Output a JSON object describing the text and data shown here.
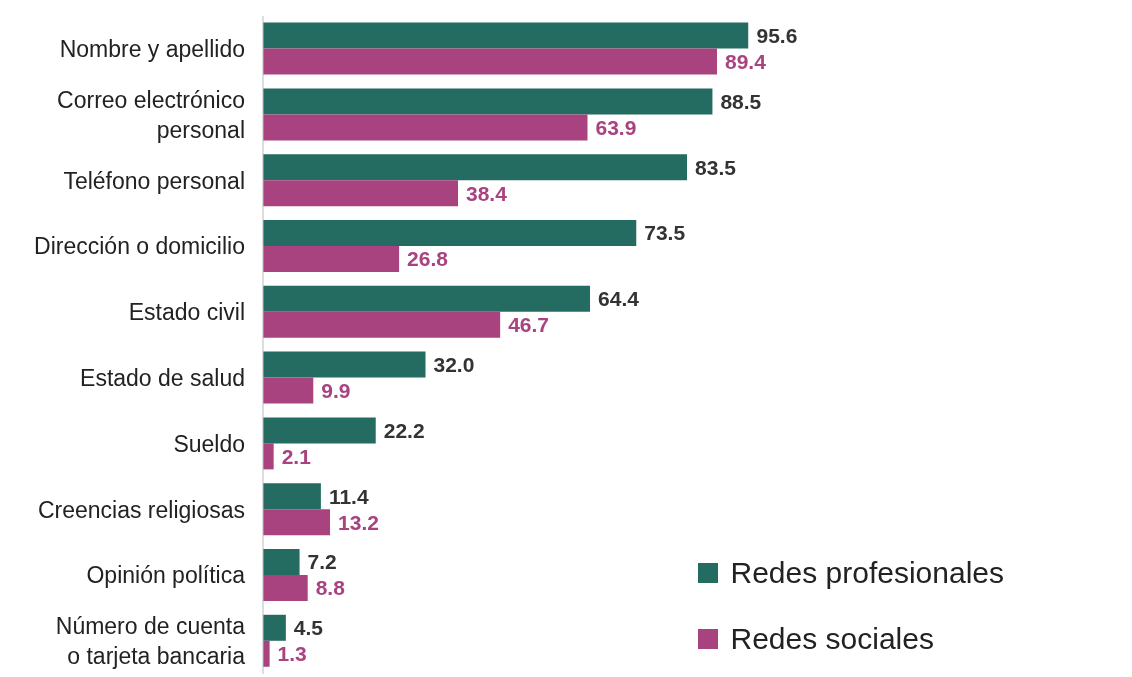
{
  "chart_data": {
    "type": "bar",
    "orientation": "horizontal",
    "categories": [
      "Nombre y apellido",
      "Correo electrónico personal",
      "Teléfono personal",
      "Dirección o domicilio",
      "Estado civil",
      "Estado de salud",
      "Sueldo",
      "Creencias religiosas",
      "Opinión política",
      "Número de cuenta o tarjeta bancaria"
    ],
    "series": [
      {
        "name": "Redes profesionales",
        "color": "#246b61",
        "values": [
          95.6,
          88.5,
          83.5,
          73.5,
          64.4,
          32.0,
          22.2,
          11.4,
          7.2,
          4.5
        ],
        "value_labels": [
          "95.6",
          "88.5",
          "83.5",
          "73.5",
          "64.4",
          "32.0",
          "22.2",
          "11.4",
          "7.2",
          "4.5"
        ]
      },
      {
        "name": "Redes sociales",
        "color": "#a8437f",
        "values": [
          89.4,
          63.9,
          38.4,
          26.8,
          46.7,
          9.9,
          2.1,
          13.2,
          8.8,
          1.3
        ],
        "value_labels": [
          "89.4",
          "63.9",
          "38.4",
          "26.8",
          "46.7",
          "9.9",
          "2.1",
          "13.2",
          "8.8",
          "1.3"
        ]
      }
    ],
    "legend": "bottom right",
    "grid": false
  }
}
